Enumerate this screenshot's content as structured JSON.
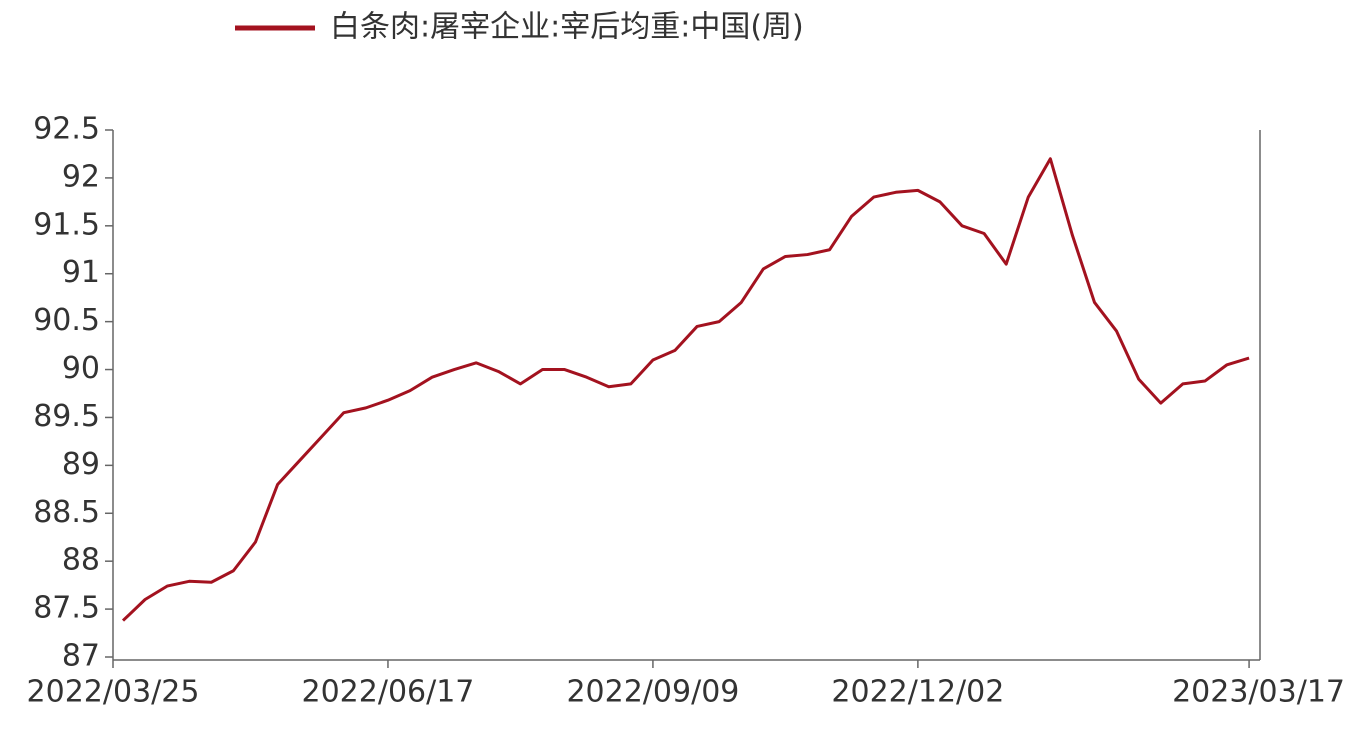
{
  "chart_data": {
    "type": "line",
    "categories": [
      "2022/03/25",
      null,
      null,
      null,
      null,
      null,
      null,
      null,
      null,
      null,
      null,
      null,
      "2022/06/17",
      null,
      null,
      null,
      null,
      null,
      null,
      null,
      null,
      null,
      null,
      null,
      "2022/09/09",
      null,
      null,
      null,
      null,
      null,
      null,
      null,
      null,
      null,
      null,
      null,
      "2022/12/02",
      null,
      null,
      null,
      null,
      null,
      null,
      null,
      null,
      null,
      null,
      null,
      null,
      null,
      null,
      "2023/03/17"
    ],
    "series": [
      {
        "name": "白条肉:屠宰企业:宰后均重:中国(周)",
        "color": "#a3121f",
        "values": [
          87.38,
          87.6,
          87.74,
          87.79,
          87.78,
          87.9,
          88.2,
          88.8,
          89.05,
          89.3,
          89.55,
          89.6,
          89.68,
          89.78,
          89.92,
          90.0,
          90.07,
          89.98,
          89.85,
          90.0,
          90.0,
          89.92,
          89.82,
          89.85,
          90.1,
          90.2,
          90.45,
          90.5,
          90.7,
          91.05,
          91.18,
          91.2,
          91.25,
          91.6,
          91.8,
          91.85,
          91.87,
          91.75,
          91.5,
          91.42,
          91.1,
          91.8,
          92.2,
          91.4,
          90.7,
          90.4,
          89.9,
          89.65,
          89.85,
          89.88,
          90.05,
          90.12
        ]
      }
    ],
    "ylim": [
      87,
      92.5
    ],
    "yticks": [
      87,
      87.5,
      88,
      88.5,
      89,
      89.5,
      90,
      90.5,
      91,
      91.5,
      92,
      92.5
    ],
    "legend": "top"
  }
}
